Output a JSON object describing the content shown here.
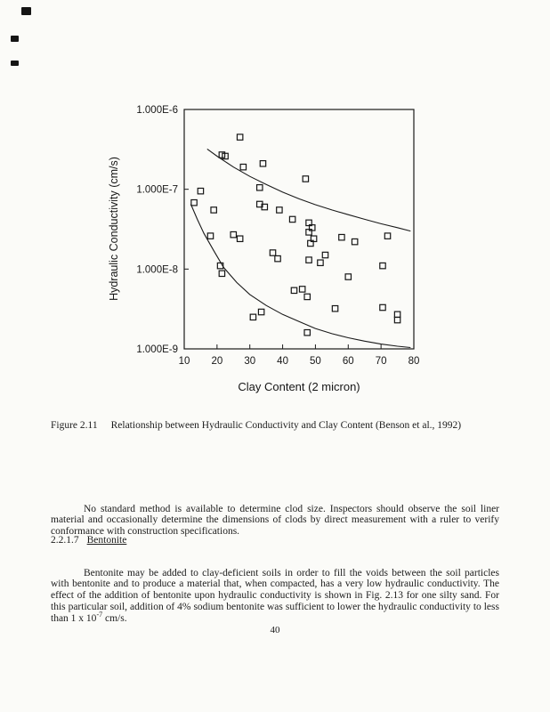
{
  "artifacts": {
    "note": "scan noise marks top-left"
  },
  "figure": {
    "caption_label": "Figure 2.11",
    "caption_text": "Relationship between Hydraulic Conductivity and Clay Content (Benson et al., 1992)"
  },
  "chart_data": {
    "type": "scatter",
    "title": "",
    "xlabel": "Clay Content (2 micron)",
    "ylabel": "Hydraulic Conductivity (cm/s)",
    "xlim": [
      10,
      80
    ],
    "ylim_log": [
      -9,
      -6
    ],
    "x_ticks": [
      10,
      20,
      30,
      40,
      50,
      60,
      70,
      80
    ],
    "y_ticks": [
      "1.000E-6",
      "1.000E-7",
      "1.000E-8",
      "1.000E-9"
    ],
    "grid": false,
    "legend": "none",
    "marker": "open-square",
    "points": [
      [
        27,
        4.5e-07
      ],
      [
        21.5,
        2.7e-07
      ],
      [
        22.5,
        2.6e-07
      ],
      [
        28,
        1.9e-07
      ],
      [
        34,
        2.1e-07
      ],
      [
        47,
        1.35e-07
      ],
      [
        33,
        1.05e-07
      ],
      [
        15,
        9.5e-08
      ],
      [
        13,
        6.8e-08
      ],
      [
        19,
        5.5e-08
      ],
      [
        33,
        6.5e-08
      ],
      [
        34.5,
        6e-08
      ],
      [
        39,
        5.5e-08
      ],
      [
        43,
        4.2e-08
      ],
      [
        48,
        3.8e-08
      ],
      [
        49,
        3.3e-08
      ],
      [
        18,
        2.6e-08
      ],
      [
        25,
        2.7e-08
      ],
      [
        27,
        2.4e-08
      ],
      [
        48,
        2.9e-08
      ],
      [
        49.5,
        2.4e-08
      ],
      [
        48.5,
        2.1e-08
      ],
      [
        58,
        2.5e-08
      ],
      [
        62,
        2.2e-08
      ],
      [
        72,
        2.6e-08
      ],
      [
        21,
        1.1e-08
      ],
      [
        21.5,
        8.8e-09
      ],
      [
        37,
        1.6e-08
      ],
      [
        38.5,
        1.35e-08
      ],
      [
        48,
        1.3e-08
      ],
      [
        51.5,
        1.2e-08
      ],
      [
        53,
        1.5e-08
      ],
      [
        60,
        8e-09
      ],
      [
        70.5,
        1.1e-08
      ],
      [
        43.5,
        5.4e-09
      ],
      [
        46,
        5.6e-09
      ],
      [
        47.5,
        4.5e-09
      ],
      [
        56,
        3.2e-09
      ],
      [
        33.5,
        2.9e-09
      ],
      [
        31,
        2.5e-09
      ],
      [
        70.5,
        3.3e-09
      ],
      [
        75,
        2.7e-09
      ],
      [
        75,
        2.3e-09
      ],
      [
        47.5,
        1.6e-09
      ]
    ],
    "upper_envelope": [
      [
        17,
        3.2e-07
      ],
      [
        20,
        2.6e-07
      ],
      [
        25,
        1.9e-07
      ],
      [
        30,
        1.45e-07
      ],
      [
        35,
        1.15e-07
      ],
      [
        40,
        9.2e-08
      ],
      [
        45,
        7.6e-08
      ],
      [
        50,
        6.4e-08
      ],
      [
        55,
        5.5e-08
      ],
      [
        60,
        4.8e-08
      ],
      [
        65,
        4.2e-08
      ],
      [
        70,
        3.7e-08
      ],
      [
        75,
        3.3e-08
      ],
      [
        79,
        3e-08
      ]
    ],
    "lower_envelope": [
      [
        12,
        6.5e-08
      ],
      [
        14,
        4.2e-08
      ],
      [
        16,
        2.8e-08
      ],
      [
        19,
        1.7e-08
      ],
      [
        22,
        1.05e-08
      ],
      [
        26,
        6.8e-09
      ],
      [
        30,
        4.8e-09
      ],
      [
        35,
        3.5e-09
      ],
      [
        40,
        2.7e-09
      ],
      [
        45,
        2.2e-09
      ],
      [
        50,
        1.8e-09
      ],
      [
        55,
        1.55e-09
      ],
      [
        60,
        1.38e-09
      ],
      [
        65,
        1.25e-09
      ],
      [
        70,
        1.15e-09
      ],
      [
        75,
        1.08e-09
      ],
      [
        79,
        1.04e-09
      ]
    ]
  },
  "body": {
    "paragraph1": "No standard method is available to determine clod size.  Inspectors should observe the soil liner material and occasionally determine the dimensions of clods by direct measurement with a ruler to verify conformance with construction specifications.",
    "section_number": "2.2.1.7",
    "section_title": "Bentonite",
    "paragraph2_pre": "Bentonite may be added to clay-deficient soils in order to fill the voids between the soil particles with bentonite and to produce a material that, when compacted, has a very low hydraulic conductivity.  The effect of the addition of bentonite upon hydraulic conductivity is shown in Fig. 2.13 for one silty sand.  For this particular soil, addition of 4% sodium bentonite was sufficient to lower the hydraulic conductivity to less than 1 x 10",
    "paragraph2_sup": "-7",
    "paragraph2_post": " cm/s."
  },
  "page": {
    "number": "40"
  }
}
